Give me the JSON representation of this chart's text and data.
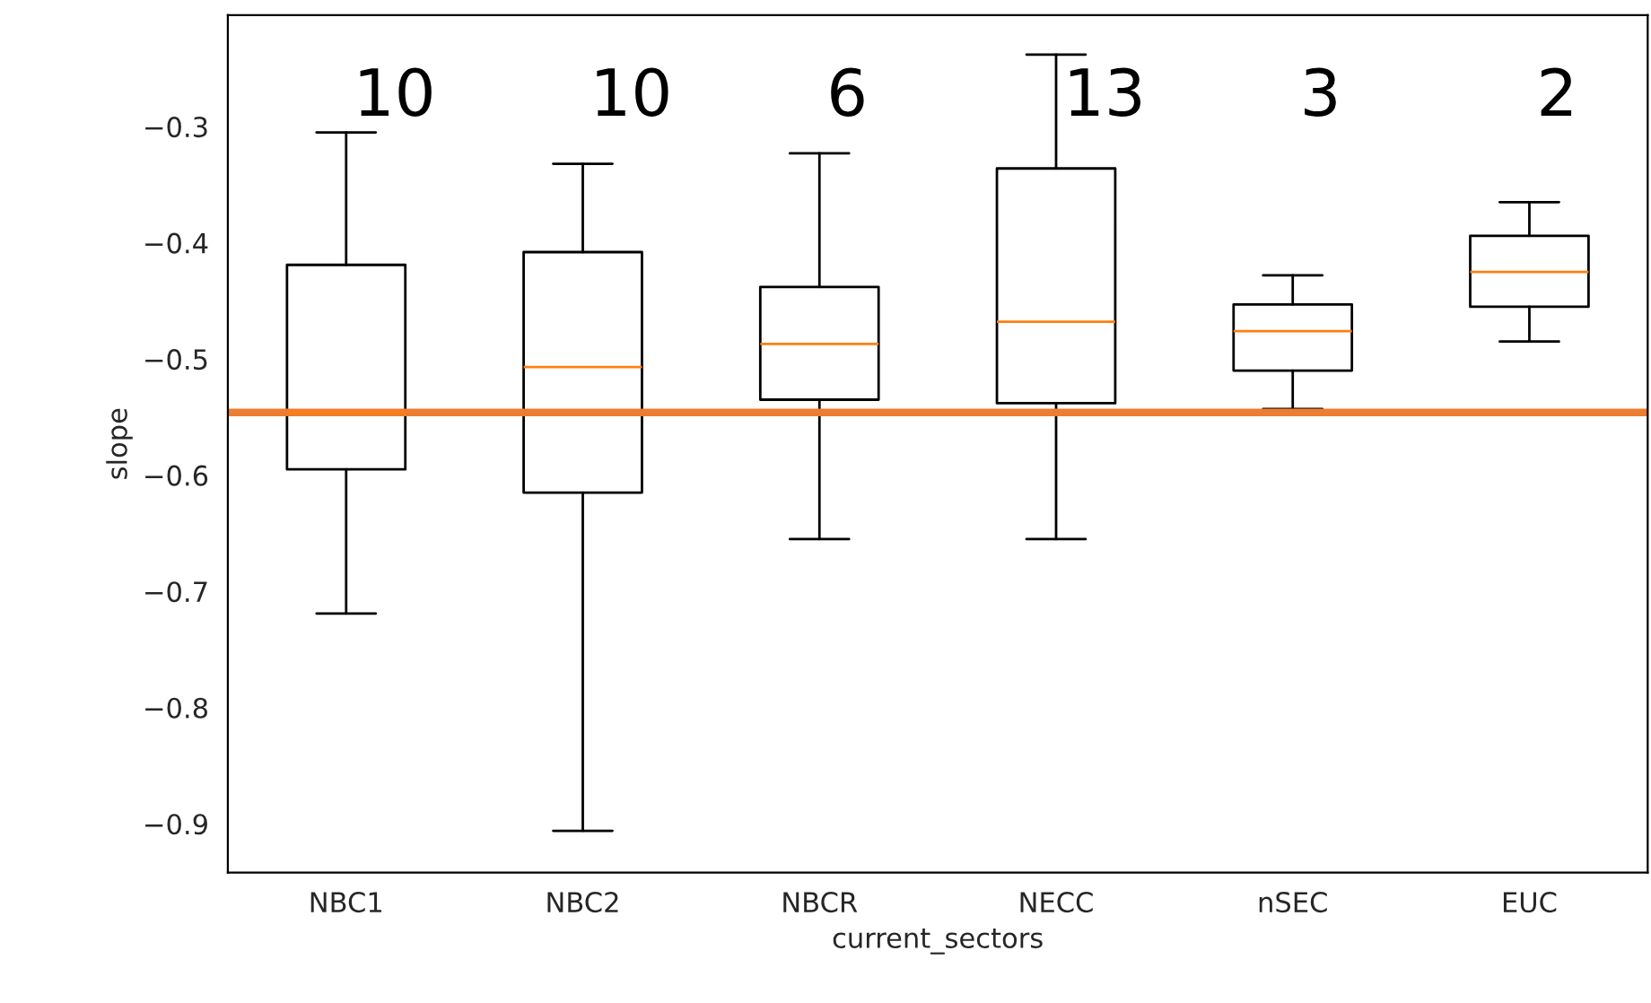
{
  "chart_data": {
    "type": "box",
    "xlabel": "current_sectors",
    "ylabel": "slope",
    "categories": [
      "NBC1",
      "NBC2",
      "NBCR",
      "NECC",
      "nSEC",
      "EUC"
    ],
    "boxes": [
      {
        "low": -0.719,
        "q1": -0.595,
        "median": -0.546,
        "q3": -0.419,
        "high": -0.305
      },
      {
        "low": -0.906,
        "q1": -0.615,
        "median": -0.507,
        "q3": -0.408,
        "high": -0.332
      },
      {
        "low": -0.655,
        "q1": -0.535,
        "median": -0.487,
        "q3": -0.438,
        "high": -0.323
      },
      {
        "low": -0.655,
        "q1": -0.538,
        "median": -0.468,
        "q3": -0.336,
        "high": -0.238
      },
      {
        "low": -0.543,
        "q1": -0.51,
        "median": -0.476,
        "q3": -0.453,
        "high": -0.428
      },
      {
        "low": -0.485,
        "q1": -0.455,
        "median": -0.425,
        "q3": -0.394,
        "high": -0.365
      }
    ],
    "color": "#000000",
    "ylim": [
      -0.942,
      -0.204
    ],
    "yticks": [
      {
        "value": -0.9,
        "label": "−0.9"
      },
      {
        "value": -0.8,
        "label": "−0.8"
      },
      {
        "value": -0.7,
        "label": "−0.7"
      },
      {
        "value": -0.6,
        "label": "−0.6"
      },
      {
        "value": -0.5,
        "label": "−0.5"
      },
      {
        "value": -0.4,
        "label": "−0.4"
      },
      {
        "value": -0.3,
        "label": "−0.3"
      }
    ],
    "ref_lines": [
      {
        "axis": "y",
        "value": -0.546,
        "label": null,
        "color": "#ed7d31"
      }
    ],
    "annotations": [
      "10",
      "10",
      "6",
      "13",
      "3",
      "2"
    ],
    "grid": false
  }
}
